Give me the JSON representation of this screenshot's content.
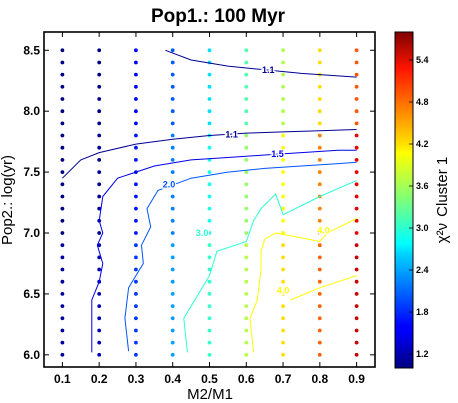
{
  "chart_data": {
    "type": "scatter",
    "title": "Pop1.: 100 Myr",
    "xlabel": "M2/M1",
    "ylabel": "Pop2.: log(yr)",
    "xlim": [
      0.05,
      0.95
    ],
    "ylim": [
      5.9,
      8.65
    ],
    "x_ticks": [
      "0.1",
      "0.2",
      "0.3",
      "0.4",
      "0.5",
      "0.6",
      "0.7",
      "0.8",
      "0.9"
    ],
    "y_ticks": [
      "6.0",
      "6.5",
      "7.0",
      "7.5",
      "8.0",
      "8.5"
    ],
    "grid": false,
    "x": [
      0.1,
      0.2,
      0.3,
      0.4,
      0.5,
      0.6,
      0.7,
      0.8,
      0.9
    ],
    "y_start": 6.0,
    "y_end": 8.5,
    "y_step": 0.1,
    "colorbar": {
      "label": "Cluster 1",
      "label_math": "χ²ν",
      "range": [
        1.0,
        5.8
      ],
      "ticks": [
        "1.2",
        "1.8",
        "2.4",
        "3.0",
        "3.6",
        "4.2",
        "4.8",
        "5.4"
      ]
    },
    "contours": [
      {
        "level": 1.1,
        "label": "1.1",
        "points": [
          [
            0.38,
            8.5
          ],
          [
            0.45,
            8.42
          ],
          [
            0.55,
            8.37
          ],
          [
            0.65,
            8.34
          ],
          [
            0.75,
            8.31
          ],
          [
            0.85,
            8.29
          ],
          [
            0.9,
            8.28
          ]
        ]
      },
      {
        "level": 1.1,
        "label": "1.1",
        "points": [
          [
            0.1,
            7.45
          ],
          [
            0.15,
            7.6
          ],
          [
            0.2,
            7.66
          ],
          [
            0.3,
            7.73
          ],
          [
            0.4,
            7.77
          ],
          [
            0.5,
            7.8
          ],
          [
            0.6,
            7.82
          ],
          [
            0.7,
            7.83
          ],
          [
            0.8,
            7.84
          ],
          [
            0.9,
            7.85
          ]
        ]
      },
      {
        "level": 1.5,
        "label": "1.5",
        "points": [
          [
            0.18,
            6.02
          ],
          [
            0.18,
            6.45
          ],
          [
            0.2,
            6.6
          ],
          [
            0.21,
            6.75
          ],
          [
            0.195,
            6.9
          ],
          [
            0.21,
            7.0
          ],
          [
            0.2,
            7.1
          ],
          [
            0.21,
            7.3
          ],
          [
            0.25,
            7.45
          ],
          [
            0.35,
            7.55
          ],
          [
            0.45,
            7.6
          ],
          [
            0.55,
            7.62
          ],
          [
            0.65,
            7.64
          ],
          [
            0.75,
            7.66
          ],
          [
            0.85,
            7.68
          ],
          [
            0.9,
            7.68
          ]
        ]
      },
      {
        "level": 2.0,
        "label": "2.0",
        "points": [
          [
            0.28,
            6.03
          ],
          [
            0.27,
            6.3
          ],
          [
            0.28,
            6.55
          ],
          [
            0.3,
            6.65
          ],
          [
            0.32,
            6.75
          ],
          [
            0.315,
            6.9
          ],
          [
            0.34,
            7.05
          ],
          [
            0.33,
            7.2
          ],
          [
            0.36,
            7.35
          ],
          [
            0.45,
            7.45
          ],
          [
            0.55,
            7.5
          ],
          [
            0.65,
            7.53
          ],
          [
            0.75,
            7.55
          ],
          [
            0.85,
            7.57
          ],
          [
            0.9,
            7.58
          ]
        ]
      },
      {
        "level": 3.0,
        "label": "3.0",
        "points": [
          [
            0.44,
            6.02
          ],
          [
            0.43,
            6.3
          ],
          [
            0.47,
            6.5
          ],
          [
            0.5,
            6.65
          ],
          [
            0.52,
            6.85
          ],
          [
            0.6,
            6.93
          ],
          [
            0.62,
            7.1
          ],
          [
            0.64,
            7.2
          ],
          [
            0.68,
            7.32
          ],
          [
            0.7,
            7.15
          ],
          [
            0.8,
            7.3
          ],
          [
            0.9,
            7.43
          ]
        ]
      },
      {
        "level": 4.0,
        "label": "4.0",
        "points": [
          [
            0.62,
            6.02
          ],
          [
            0.61,
            6.3
          ],
          [
            0.63,
            6.45
          ],
          [
            0.64,
            6.7
          ],
          [
            0.64,
            6.85
          ],
          [
            0.65,
            6.95
          ],
          [
            0.68,
            7.0
          ],
          [
            0.75,
            6.96
          ],
          [
            0.8,
            6.93
          ],
          [
            0.82,
            7.0
          ],
          [
            0.9,
            7.12
          ]
        ]
      },
      {
        "level": 4.0,
        "label": "4.0",
        "points": [
          [
            0.72,
            6.45
          ],
          [
            0.8,
            6.55
          ],
          [
            0.85,
            6.6
          ],
          [
            0.9,
            6.65
          ]
        ]
      }
    ],
    "contour_labels": [
      {
        "text": "1.1",
        "x": 0.66,
        "y": 8.34
      },
      {
        "text": "1.1",
        "x": 0.56,
        "y": 7.81
      },
      {
        "text": "1.5",
        "x": 0.685,
        "y": 7.65
      },
      {
        "text": "2.0",
        "x": 0.39,
        "y": 7.4
      },
      {
        "text": "3.0",
        "x": 0.48,
        "y": 7.0
      },
      {
        "text": "4.0",
        "x": 0.81,
        "y": 7.02
      },
      {
        "text": "4.0",
        "x": 0.7,
        "y": 6.53
      }
    ]
  }
}
